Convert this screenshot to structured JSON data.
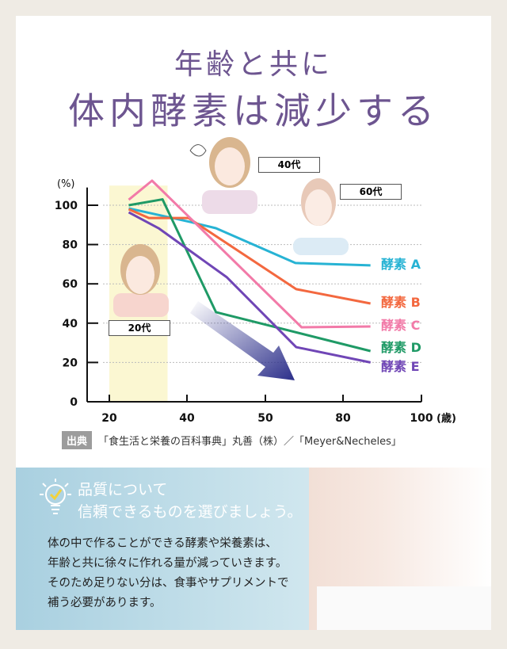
{
  "title": {
    "line1": "年齢と共に",
    "line2": "体内酵素は減少する"
  },
  "chart_data": {
    "type": "line",
    "ylabel": "(%)",
    "xlabel": "(歳)",
    "x_ticks": [
      20,
      40,
      50,
      80,
      100
    ],
    "y_ticks": [
      0,
      20,
      40,
      60,
      80,
      100
    ],
    "ylim": [
      0,
      110
    ],
    "grid": "horizontal dotted",
    "highlight_band": {
      "from": 20,
      "to": 35,
      "color": "#fbf7d2"
    },
    "age_tags": [
      "20代",
      "40代",
      "60代"
    ],
    "series": [
      {
        "name": "酵素 A",
        "color": "#27b3d4",
        "x": [
          25,
          40.4,
          43.7,
          61.6,
          87
        ],
        "y": [
          98.4,
          91.5,
          88.3,
          70.6,
          69.4
        ]
      },
      {
        "name": "酵素 B",
        "color": "#f3683f",
        "x": [
          25,
          30.2,
          40.2,
          61.9,
          87
        ],
        "y": [
          98,
          93.5,
          93.5,
          57.3,
          50
        ]
      },
      {
        "name": "酵素 C",
        "color": "#f27aa8",
        "x": [
          25,
          31,
          64,
          87
        ],
        "y": [
          102.8,
          112.5,
          37.9,
          38.3
        ]
      },
      {
        "name": "酵素 D",
        "color": "#1f9a66",
        "x": [
          25,
          33.7,
          43.7,
          87
        ],
        "y": [
          100,
          103,
          45.6,
          25.8
        ]
      },
      {
        "name": "酵素 E",
        "color": "#7046b6",
        "x": [
          25,
          32.7,
          45.1,
          61.9,
          87
        ],
        "y": [
          96.4,
          88.3,
          63.3,
          27.8,
          20
        ]
      }
    ]
  },
  "source": {
    "tag": "出典",
    "text": "「食生活と栄養の百科事典」丸善（株）／「Meyer&Necheles」"
  },
  "panel": {
    "headline": [
      "品質について",
      "信頼できるものを選びましょう。"
    ],
    "body": [
      "体の中で作ることができる酵素や栄養素は、",
      "年齢と共に徐々に作れる量が減っていきます。",
      "そのため足りない分は、食事やサプリメントで",
      "補う必要があります。"
    ],
    "check_color": "#f2d23a"
  }
}
